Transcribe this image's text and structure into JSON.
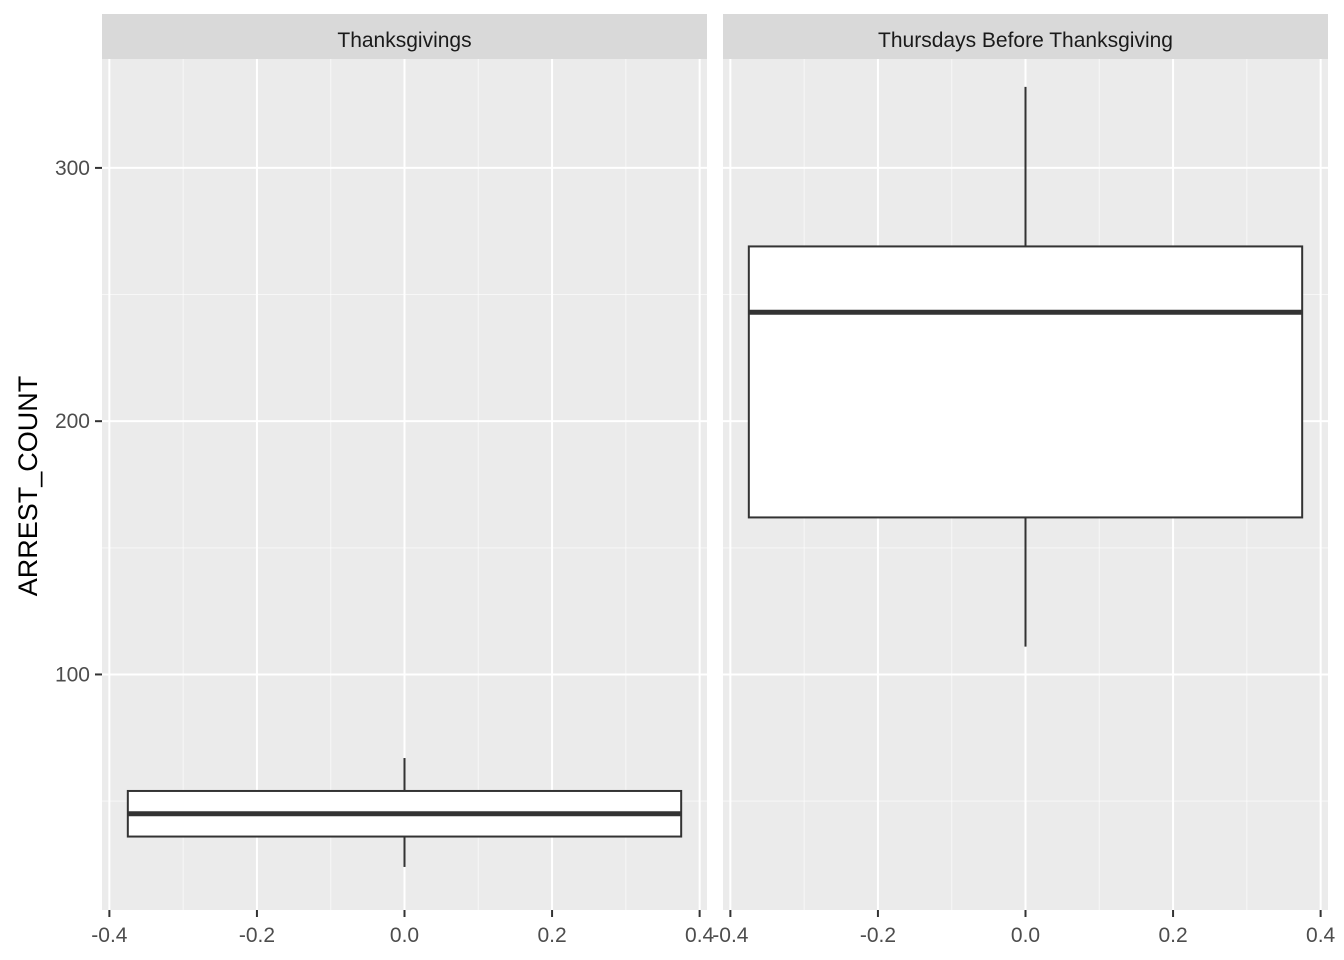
{
  "chart_data": {
    "type": "boxplot",
    "ylabel": "ARREST_COUNT",
    "xlabel": "",
    "ylim": [
      7,
      343
    ],
    "xlim": [
      -0.41,
      0.41
    ],
    "x_ticks": [
      "-0.4",
      "-0.2",
      "0.0",
      "0.2",
      "0.4"
    ],
    "y_ticks": [
      {
        "value": 100,
        "label": "100"
      },
      {
        "value": 200,
        "label": "200"
      },
      {
        "value": 300,
        "label": "300"
      }
    ],
    "grid": true,
    "facets": [
      {
        "title": "Thanksgivings",
        "box": {
          "x_center": 0.0,
          "half_width": 0.375,
          "lower_whisker": 24,
          "q1": 36,
          "median": 45,
          "q3": 54,
          "upper_whisker": 67
        }
      },
      {
        "title": "Thursdays Before Thanksgiving",
        "box": {
          "x_center": 0.0,
          "half_width": 0.375,
          "lower_whisker": 111,
          "q1": 162,
          "median": 243,
          "q3": 269,
          "upper_whisker": 332
        }
      }
    ]
  },
  "colors": {
    "panel_bg": "#ebebeb",
    "strip_bg": "#d9d9d9",
    "grid_major": "#ffffff",
    "box_fill": "#ffffff",
    "box_line": "#333333"
  }
}
